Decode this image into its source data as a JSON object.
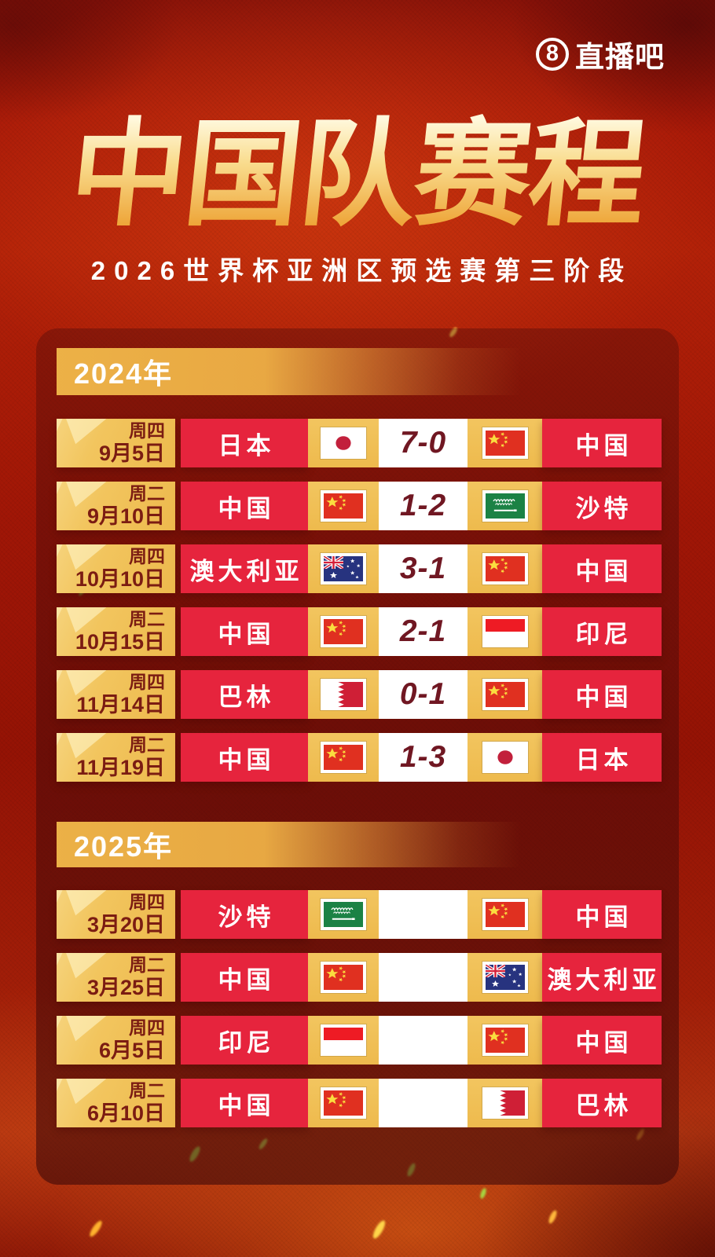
{
  "brand": {
    "logo_number": "8",
    "logo_text": "直播吧"
  },
  "header": {
    "title": "中国队赛程",
    "subtitle": "2026世界杯亚洲区预选赛第三阶段"
  },
  "colors": {
    "background_red": "#9c1407",
    "cell_red": "#e6243d",
    "cell_gold": "#f0c058",
    "score_text": "#701722",
    "title_gradient_top": "#fff8dc",
    "title_gradient_bottom": "#eea63a"
  },
  "sections": [
    {
      "year_label": "2024年",
      "matches": [
        {
          "weekday": "周四",
          "date": "9月5日",
          "home": {
            "name": "日本",
            "flag": "japan"
          },
          "score": "7-0",
          "away": {
            "name": "中国",
            "flag": "china"
          }
        },
        {
          "weekday": "周二",
          "date": "9月10日",
          "home": {
            "name": "中国",
            "flag": "china"
          },
          "score": "1-2",
          "away": {
            "name": "沙特",
            "flag": "saudi"
          }
        },
        {
          "weekday": "周四",
          "date": "10月10日",
          "home": {
            "name": "澳大利亚",
            "flag": "australia"
          },
          "score": "3-1",
          "away": {
            "name": "中国",
            "flag": "china"
          }
        },
        {
          "weekday": "周二",
          "date": "10月15日",
          "home": {
            "name": "中国",
            "flag": "china"
          },
          "score": "2-1",
          "away": {
            "name": "印尼",
            "flag": "indonesia"
          }
        },
        {
          "weekday": "周四",
          "date": "11月14日",
          "home": {
            "name": "巴林",
            "flag": "bahrain"
          },
          "score": "0-1",
          "away": {
            "name": "中国",
            "flag": "china"
          }
        },
        {
          "weekday": "周二",
          "date": "11月19日",
          "home": {
            "name": "中国",
            "flag": "china"
          },
          "score": "1-3",
          "away": {
            "name": "日本",
            "flag": "japan"
          }
        }
      ]
    },
    {
      "year_label": "2025年",
      "matches": [
        {
          "weekday": "周四",
          "date": "3月20日",
          "home": {
            "name": "沙特",
            "flag": "saudi"
          },
          "score": "",
          "away": {
            "name": "中国",
            "flag": "china"
          }
        },
        {
          "weekday": "周二",
          "date": "3月25日",
          "home": {
            "name": "中国",
            "flag": "china"
          },
          "score": "",
          "away": {
            "name": "澳大利亚",
            "flag": "australia"
          }
        },
        {
          "weekday": "周四",
          "date": "6月5日",
          "home": {
            "name": "印尼",
            "flag": "indonesia"
          },
          "score": "",
          "away": {
            "name": "中国",
            "flag": "china"
          }
        },
        {
          "weekday": "周二",
          "date": "6月10日",
          "home": {
            "name": "中国",
            "flag": "china"
          },
          "score": "",
          "away": {
            "name": "巴林",
            "flag": "bahrain"
          }
        }
      ]
    }
  ]
}
